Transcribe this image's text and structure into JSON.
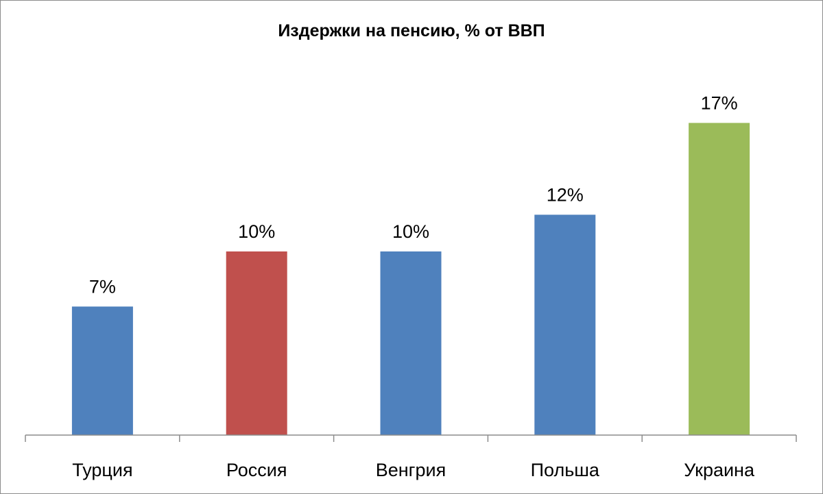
{
  "chart_data": {
    "type": "bar",
    "title": "Издержки на пенсию, %  от ВВП",
    "categories": [
      "Турция",
      "Россия",
      "Венгрия",
      "Польша",
      "Украина"
    ],
    "values": [
      7,
      10,
      10,
      12,
      17
    ],
    "data_labels": [
      "7%",
      "10%",
      "10%",
      "12%",
      "17%"
    ],
    "bar_colors": [
      "#4f81bd",
      "#c0504d",
      "#4f81bd",
      "#4f81bd",
      "#9bbb59"
    ],
    "xlabel": "",
    "ylabel": "",
    "ylim": [
      0,
      20
    ],
    "grid": false,
    "legend": "none"
  }
}
